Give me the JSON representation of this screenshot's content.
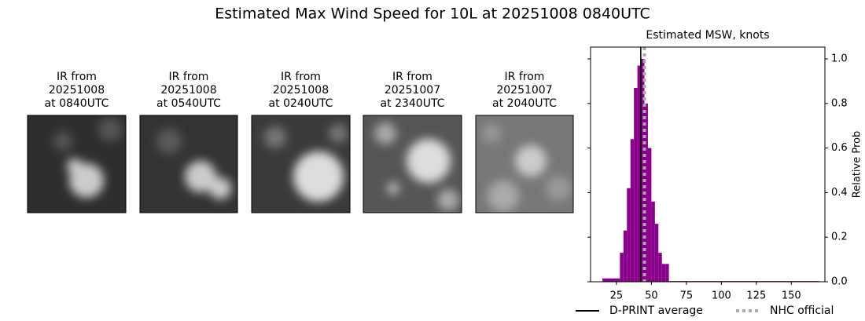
{
  "title": "Estimated Max Wind Speed for 10L at 20251008 0840UTC",
  "panels": [
    {
      "lines": [
        "IR from",
        "20251008",
        "at 0840UTC"
      ]
    },
    {
      "lines": [
        "IR from",
        "20251008",
        "at 0540UTC"
      ]
    },
    {
      "lines": [
        "IR from",
        "20251008",
        "at 0240UTC"
      ]
    },
    {
      "lines": [
        "IR from",
        "20251007",
        "at 2340UTC"
      ]
    },
    {
      "lines": [
        "IR from",
        "20251007",
        "at 2040UTC"
      ]
    }
  ],
  "chart_data": {
    "type": "histogram",
    "title": "Estimated MSW, knots",
    "y_label": "Relative Prob",
    "bins": [
      15,
      27.5,
      30,
      32.5,
      35,
      37.5,
      40,
      42.5,
      45,
      47.5,
      50,
      52.5,
      55,
      57.5,
      60,
      62.5,
      170
    ],
    "values": [
      0.015,
      0.13,
      0.23,
      0.42,
      0.64,
      0.87,
      0.97,
      1.0,
      0.8,
      0.6,
      0.36,
      0.26,
      0.13,
      0.08,
      0.08,
      0.003
    ],
    "color": "#8b008b",
    "xlim": [
      6.5,
      174
    ],
    "xticks": [
      25,
      50,
      75,
      100,
      125,
      150
    ],
    "ylim": [
      0,
      1.053
    ],
    "yticks": [
      {
        "value": 0,
        "label": "0.0"
      },
      {
        "value": 0.2,
        "label": "0.2"
      },
      {
        "value": 0.4,
        "label": "0.4"
      },
      {
        "value": 0.6,
        "label": "0.6"
      },
      {
        "value": 0.8,
        "label": "0.8"
      },
      {
        "value": 1.0,
        "label": "1.0"
      }
    ],
    "vlines": [
      {
        "name": "D-PRINT average",
        "value": 42.4,
        "color": "#000000",
        "dashed": false
      },
      {
        "name": "NHC official",
        "value": 45,
        "color": "#aaaaaa",
        "dashed": true
      }
    ],
    "legend": "below"
  }
}
